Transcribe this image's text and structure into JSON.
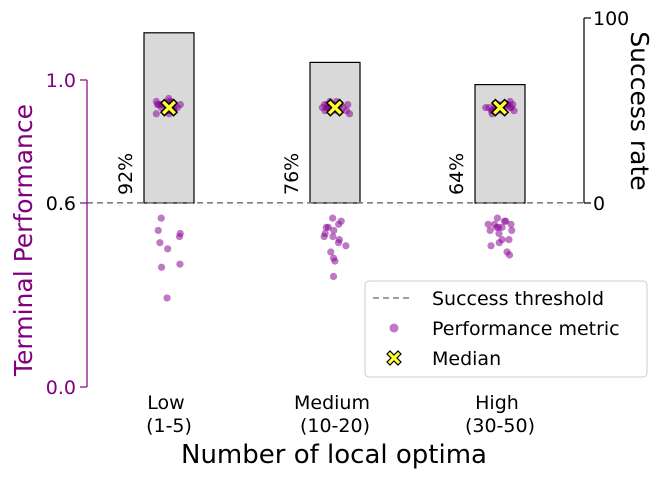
{
  "chart_data": {
    "type": "bar",
    "xlabel": "Number of local optima",
    "ylabel_left": "Terminal Performance",
    "ylabel_right": "Success rate",
    "left_ticks": [
      "0.0",
      "0.6",
      "1.0"
    ],
    "right_ticks": [
      "0",
      "100"
    ],
    "categories": [
      {
        "line1": "Low",
        "line2": "(1-5)"
      },
      {
        "line1": "Medium",
        "line2": "(10-20)"
      },
      {
        "line1": "High",
        "line2": "(30-50)"
      }
    ],
    "success_rate": [
      92,
      76,
      64
    ],
    "success_labels": [
      "92%",
      "76%",
      "64%"
    ],
    "threshold": 0.6,
    "median": [
      0.91,
      0.91,
      0.91
    ],
    "points": [
      [
        0.94,
        0.93,
        0.92,
        0.91,
        0.9,
        0.89,
        0.93,
        0.92,
        0.91,
        0.9,
        0.92,
        0.91,
        0.9,
        0.89,
        0.93,
        0.92,
        0.91,
        0.92,
        0.9,
        0.91,
        0.55,
        0.51,
        0.49,
        0.5,
        0.47,
        0.45,
        0.4,
        0.39,
        0.29
      ],
      [
        0.93,
        0.92,
        0.91,
        0.9,
        0.89,
        0.92,
        0.91,
        0.9,
        0.93,
        0.92,
        0.91,
        0.9,
        0.92,
        0.91,
        0.92,
        0.91,
        0.9,
        0.91,
        0.92,
        0.91,
        0.55,
        0.54,
        0.53,
        0.52,
        0.52,
        0.51,
        0.5,
        0.49,
        0.49,
        0.48,
        0.47,
        0.46,
        0.44,
        0.42,
        0.41,
        0.36
      ],
      [
        0.93,
        0.92,
        0.91,
        0.9,
        0.89,
        0.92,
        0.91,
        0.9,
        0.92,
        0.91,
        0.9,
        0.92,
        0.91,
        0.92,
        0.91,
        0.9,
        0.91,
        0.92,
        0.91,
        0.9,
        0.55,
        0.54,
        0.54,
        0.53,
        0.53,
        0.53,
        0.52,
        0.52,
        0.52,
        0.51,
        0.51,
        0.5,
        0.48,
        0.48,
        0.47,
        0.46,
        0.44,
        0.43
      ]
    ],
    "legend": {
      "threshold": "Success threshold",
      "points": "Performance metric",
      "median": "Median"
    },
    "legend_position": "lower-right",
    "colors": {
      "points": "#8b0a96",
      "left_axis": "#800080",
      "bar_fill": "#d9d9d9",
      "median_fill": "#ffff33",
      "threshold": "#808080"
    }
  }
}
